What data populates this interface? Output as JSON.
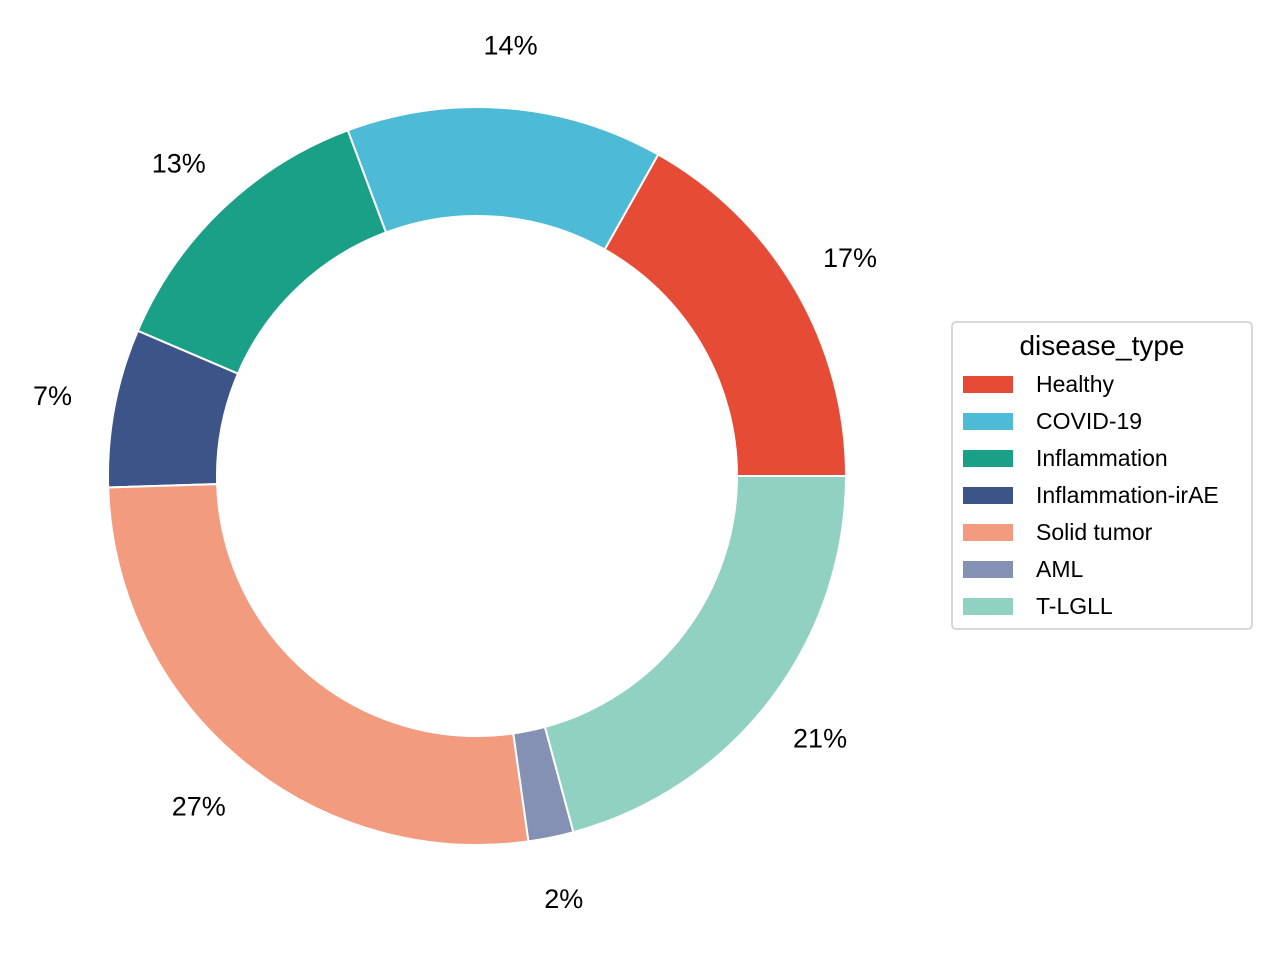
{
  "chart_data": {
    "type": "pie",
    "subtype": "donut",
    "legend_title": "disease_type",
    "legend_position": "right",
    "start_angle_deg": 0,
    "direction": "counterclockwise",
    "slices": [
      {
        "label": "Healthy",
        "value": 17,
        "display": "17%",
        "color": "#E64B35"
      },
      {
        "label": "COVID-19",
        "value": 14,
        "display": "14%",
        "color": "#4DBBD5"
      },
      {
        "label": "Inflammation",
        "value": 13,
        "display": "13%",
        "color": "#1BA088"
      },
      {
        "label": "Inflammation-irAE",
        "value": 7,
        "display": "7%",
        "color": "#3C5488"
      },
      {
        "label": "Solid tumor",
        "value": 27,
        "display": "27%",
        "color": "#F39B7F"
      },
      {
        "label": "AML",
        "value": 2,
        "display": "2%",
        "color": "#8491B4"
      },
      {
        "label": "T-LGLL",
        "value": 21,
        "display": "21%",
        "color": "#91D1C2"
      }
    ]
  }
}
